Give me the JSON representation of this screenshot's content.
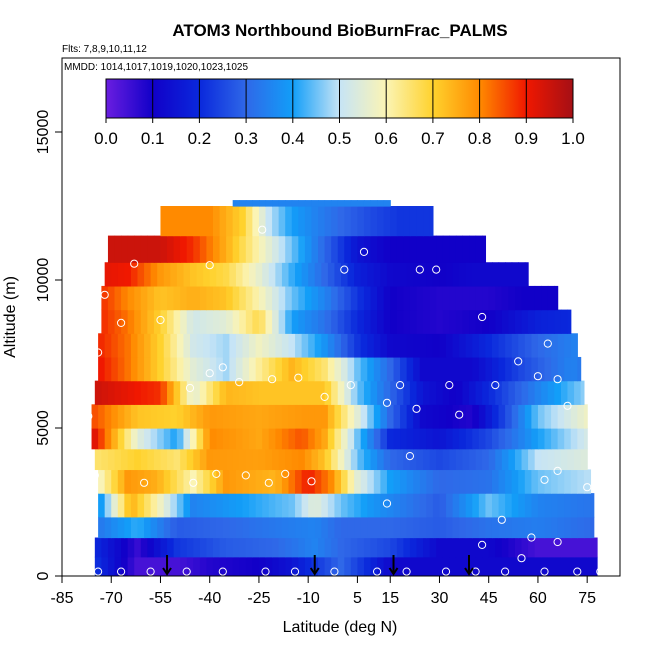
{
  "chart_data": {
    "type": "heatmap",
    "title": "ATOM3 Northbound BioBurnFrac_PALMS",
    "flights_note": "Flts: 7,8,9,10,11,12",
    "dates_note": "MMDD: 1014,1017,1019,1020,1023,1025",
    "xlabel": "Latitude (deg N)",
    "ylabel": "Altitude (m)",
    "xlim": [
      -85,
      85
    ],
    "ylim": [
      0,
      17500
    ],
    "x_ticks": [
      -85,
      -70,
      -55,
      -40,
      -25,
      -10,
      5,
      15,
      30,
      45,
      60,
      75
    ],
    "y_ticks": [
      0,
      5000,
      10000,
      15000
    ],
    "colorbar": {
      "ticks": [
        "0.0",
        "0.1",
        "0.2",
        "0.3",
        "0.4",
        "0.5",
        "0.6",
        "0.7",
        "0.8",
        "0.9",
        "1.0"
      ],
      "range": [
        0,
        1
      ],
      "colors": [
        "#6a1ee0",
        "#1100c8",
        "#0a28dc",
        "#2f68e8",
        "#129ef8",
        "#c6e4f6",
        "#fbf4b4",
        "#ffd22d",
        "#ff8a00",
        "#f01800",
        "#a50f15"
      ]
    },
    "cloud_layers": [
      {
        "y": [
          0,
          650
        ],
        "pts": [
          [
            -75,
            0.22
          ],
          [
            -62,
            0.04
          ],
          [
            -50,
            0.04
          ],
          [
            -40,
            0.08
          ],
          [
            -25,
            0.1
          ],
          [
            -15,
            0.15
          ],
          [
            -8,
            0.22
          ],
          [
            0,
            0.3
          ],
          [
            15,
            0.12
          ],
          [
            30,
            0.12
          ],
          [
            45,
            0.12
          ],
          [
            60,
            0.12
          ],
          [
            78,
            0.12
          ]
        ]
      },
      {
        "y": [
          650,
          1300
        ],
        "pts": [
          [
            -75,
            0.2
          ],
          [
            -62,
            0.06
          ],
          [
            -50,
            0.22
          ],
          [
            -35,
            0.28
          ],
          [
            -20,
            0.3
          ],
          [
            -8,
            0.35
          ],
          [
            0,
            0.3
          ],
          [
            15,
            0.25
          ],
          [
            30,
            0.12
          ],
          [
            45,
            0.12
          ],
          [
            60,
            0.04
          ],
          [
            78,
            0.04
          ]
        ]
      },
      {
        "y": [
          1300,
          2000
        ],
        "pts": [
          [
            -75,
            0.32
          ],
          [
            -62,
            0.42
          ],
          [
            -50,
            0.28
          ],
          [
            -35,
            0.3
          ],
          [
            -20,
            0.33
          ],
          [
            -8,
            0.35
          ],
          [
            0,
            0.3
          ],
          [
            15,
            0.3
          ],
          [
            30,
            0.28
          ],
          [
            45,
            0.32
          ],
          [
            60,
            0.34
          ],
          [
            78,
            0.3
          ]
        ]
      },
      {
        "y": [
          2000,
          2800
        ],
        "pts": [
          [
            -75,
            0.32
          ],
          [
            -64,
            0.75
          ],
          [
            -56,
            0.6
          ],
          [
            -45,
            0.35
          ],
          [
            -30,
            0.4
          ],
          [
            -15,
            0.45
          ],
          [
            -8,
            0.55
          ],
          [
            0,
            0.45
          ],
          [
            10,
            0.38
          ],
          [
            30,
            0.28
          ],
          [
            45,
            0.45
          ],
          [
            60,
            0.35
          ],
          [
            78,
            0.32
          ]
        ]
      },
      {
        "y": [
          2800,
          3600
        ],
        "pts": [
          [
            -75,
            0.55
          ],
          [
            -65,
            0.78
          ],
          [
            -56,
            0.75
          ],
          [
            -45,
            0.6
          ],
          [
            -35,
            0.78
          ],
          [
            -20,
            0.74
          ],
          [
            -10,
            0.9
          ],
          [
            -3,
            0.8
          ],
          [
            5,
            0.55
          ],
          [
            15,
            0.4
          ],
          [
            30,
            0.3
          ],
          [
            45,
            0.32
          ],
          [
            60,
            0.45
          ],
          [
            78,
            0.5
          ]
        ]
      },
      {
        "y": [
          3600,
          4300
        ],
        "pts": [
          [
            -75,
            0.65
          ],
          [
            -62,
            0.7
          ],
          [
            -50,
            0.65
          ],
          [
            -40,
            0.78
          ],
          [
            -25,
            0.77
          ],
          [
            -12,
            0.8
          ],
          [
            -5,
            0.72
          ],
          [
            5,
            0.45
          ],
          [
            15,
            0.3
          ],
          [
            30,
            0.25
          ],
          [
            45,
            0.3
          ],
          [
            60,
            0.5
          ],
          [
            78,
            0.55
          ]
        ]
      },
      {
        "y": [
          4300,
          5000
        ],
        "pts": [
          [
            -75,
            0.92
          ],
          [
            -62,
            0.55
          ],
          [
            -50,
            0.4
          ],
          [
            -40,
            0.8
          ],
          [
            -25,
            0.76
          ],
          [
            -12,
            0.85
          ],
          [
            -5,
            0.76
          ],
          [
            5,
            0.45
          ],
          [
            15,
            0.2
          ],
          [
            30,
            0.15
          ],
          [
            45,
            0.25
          ],
          [
            60,
            0.4
          ],
          [
            78,
            0.55
          ]
        ]
      },
      {
        "y": [
          5000,
          5800
        ],
        "pts": [
          [
            -75,
            0.85
          ],
          [
            -62,
            0.72
          ],
          [
            -50,
            0.7
          ],
          [
            -40,
            0.78
          ],
          [
            -25,
            0.76
          ],
          [
            -12,
            0.78
          ],
          [
            -5,
            0.78
          ],
          [
            5,
            0.55
          ],
          [
            15,
            0.3
          ],
          [
            25,
            0.12
          ],
          [
            40,
            0.08
          ],
          [
            50,
            0.25
          ],
          [
            60,
            0.45
          ],
          [
            78,
            0.6
          ]
        ]
      },
      {
        "y": [
          5800,
          6600
        ],
        "pts": [
          [
            -75,
            0.95
          ],
          [
            -62,
            0.9
          ],
          [
            -55,
            0.88
          ],
          [
            -45,
            0.55
          ],
          [
            -35,
            0.74
          ],
          [
            -25,
            0.72
          ],
          [
            -15,
            0.72
          ],
          [
            -5,
            0.72
          ],
          [
            5,
            0.45
          ],
          [
            15,
            0.3
          ],
          [
            25,
            0.15
          ],
          [
            35,
            0.1
          ],
          [
            45,
            0.2
          ],
          [
            60,
            0.35
          ],
          [
            78,
            0.5
          ]
        ]
      },
      {
        "y": [
          6600,
          7400
        ],
        "pts": [
          [
            -75,
            0.92
          ],
          [
            -65,
            0.82
          ],
          [
            -55,
            0.7
          ],
          [
            -45,
            0.55
          ],
          [
            -35,
            0.48
          ],
          [
            -25,
            0.62
          ],
          [
            -15,
            0.74
          ],
          [
            -5,
            0.65
          ],
          [
            5,
            0.45
          ],
          [
            15,
            0.3
          ],
          [
            25,
            0.12
          ],
          [
            40,
            0.12
          ],
          [
            55,
            0.25
          ],
          [
            70,
            0.35
          ],
          [
            78,
            0.3
          ]
        ]
      },
      {
        "y": [
          7400,
          8200
        ],
        "pts": [
          [
            -75,
            0.9
          ],
          [
            -65,
            0.82
          ],
          [
            -55,
            0.7
          ],
          [
            -45,
            0.52
          ],
          [
            -35,
            0.48
          ],
          [
            -25,
            0.58
          ],
          [
            -15,
            0.5
          ],
          [
            -5,
            0.38
          ],
          [
            5,
            0.22
          ],
          [
            15,
            0.12
          ],
          [
            30,
            0.1
          ],
          [
            45,
            0.2
          ],
          [
            60,
            0.3
          ],
          [
            72,
            0.35
          ]
        ]
      },
      {
        "y": [
          8200,
          9000
        ],
        "pts": [
          [
            -75,
            0.9
          ],
          [
            -65,
            0.82
          ],
          [
            -55,
            0.7
          ],
          [
            -45,
            0.52
          ],
          [
            -35,
            0.55
          ],
          [
            -25,
            0.68
          ],
          [
            -15,
            0.4
          ],
          [
            -5,
            0.32
          ],
          [
            5,
            0.2
          ],
          [
            15,
            0.1
          ],
          [
            30,
            0.08
          ],
          [
            45,
            0.1
          ],
          [
            60,
            0.18
          ],
          [
            70,
            0.2
          ]
        ]
      },
      {
        "y": [
          9000,
          9800
        ],
        "pts": [
          [
            -75,
            0.9
          ],
          [
            -65,
            0.8
          ],
          [
            -55,
            0.72
          ],
          [
            -45,
            0.75
          ],
          [
            -35,
            0.72
          ],
          [
            -25,
            0.6
          ],
          [
            -15,
            0.45
          ],
          [
            -5,
            0.35
          ],
          [
            5,
            0.22
          ],
          [
            15,
            0.1
          ],
          [
            30,
            0.08
          ],
          [
            45,
            0.08
          ],
          [
            55,
            0.1
          ]
        ]
      },
      {
        "y": [
          9800,
          10600
        ],
        "pts": [
          [
            -75,
            0.92
          ],
          [
            -65,
            0.9
          ],
          [
            -55,
            0.78
          ],
          [
            -45,
            0.72
          ],
          [
            -35,
            0.68
          ],
          [
            -25,
            0.56
          ],
          [
            -15,
            0.42
          ],
          [
            -5,
            0.3
          ],
          [
            5,
            0.18
          ],
          [
            15,
            0.12
          ],
          [
            30,
            0.1
          ],
          [
            40,
            0.12
          ]
        ]
      },
      {
        "y": [
          10600,
          11500
        ],
        "pts": [
          [
            -55,
            0.95
          ],
          [
            -45,
            0.88
          ],
          [
            -35,
            0.75
          ],
          [
            -25,
            0.6
          ],
          [
            -15,
            0.45
          ],
          [
            -5,
            0.3
          ],
          [
            5,
            0.15
          ],
          [
            15,
            0.1
          ],
          [
            28,
            0.1
          ]
        ]
      },
      {
        "y": [
          11500,
          12500
        ],
        "pts": [
          [
            -40,
            0.8
          ],
          [
            -30,
            0.7
          ],
          [
            -22,
            0.5
          ],
          [
            -15,
            0.4
          ],
          [
            -8,
            0.35
          ],
          [
            0,
            0.3
          ],
          [
            10,
            0.25
          ],
          [
            18,
            0.22
          ]
        ]
      },
      {
        "y": [
          12500,
          12700
        ],
        "pts": [
          [
            -10,
            0.35
          ],
          [
            -8,
            0.35
          ]
        ]
      }
    ],
    "coverage": [
      [
        0,
        -75,
        78
      ],
      [
        650,
        -75,
        78
      ],
      [
        1300,
        -74,
        77
      ],
      [
        2000,
        -74,
        77
      ],
      [
        2800,
        -74,
        76
      ],
      [
        3600,
        -75,
        75
      ],
      [
        4300,
        -76,
        75
      ],
      [
        5000,
        -76,
        75
      ],
      [
        5800,
        -75,
        74
      ],
      [
        6600,
        -74,
        73
      ],
      [
        7400,
        -74,
        72
      ],
      [
        8200,
        -73,
        70
      ],
      [
        9000,
        -73,
        66
      ],
      [
        9800,
        -72,
        57
      ],
      [
        10600,
        -71,
        44
      ],
      [
        11500,
        -55,
        28
      ],
      [
        12500,
        -33,
        15
      ],
      [
        12700,
        -10,
        -8
      ]
    ],
    "samples": [
      [
        -74,
        150
      ],
      [
        -67,
        150
      ],
      [
        -58,
        150
      ],
      [
        -47,
        150
      ],
      [
        -36,
        150
      ],
      [
        -23,
        150
      ],
      [
        -14,
        150
      ],
      [
        -2,
        150
      ],
      [
        11,
        150
      ],
      [
        20,
        150
      ],
      [
        32,
        150
      ],
      [
        41,
        150
      ],
      [
        50,
        150
      ],
      [
        62,
        150
      ],
      [
        72,
        150
      ],
      [
        79,
        150
      ],
      [
        -60,
        3150
      ],
      [
        -75,
        3400
      ],
      [
        -45,
        3150
      ],
      [
        -38,
        3450
      ],
      [
        -29,
        3400
      ],
      [
        -22,
        3150
      ],
      [
        -17,
        3450
      ],
      [
        -9,
        3200
      ],
      [
        14,
        2450
      ],
      [
        21,
        4050
      ],
      [
        66,
        1150
      ],
      [
        58,
        1300
      ],
      [
        55,
        600
      ],
      [
        49,
        1900
      ],
      [
        43,
        1050
      ],
      [
        75,
        3000
      ],
      [
        -77,
        5400
      ],
      [
        -46,
        6350
      ],
      [
        -40,
        6850
      ],
      [
        -31,
        6550
      ],
      [
        -21,
        6650
      ],
      [
        -13,
        6700
      ],
      [
        -5,
        6050
      ],
      [
        3,
        6450
      ],
      [
        14,
        5850
      ],
      [
        18,
        6450
      ],
      [
        23,
        5650
      ],
      [
        36,
        5450
      ],
      [
        33,
        6450
      ],
      [
        47,
        6450
      ],
      [
        66,
        6650
      ],
      [
        69,
        5750
      ],
      [
        75,
        6950
      ],
      [
        -74,
        7550
      ],
      [
        -67,
        8550
      ],
      [
        -55,
        8650
      ],
      [
        -36,
        7050
      ],
      [
        -40,
        10500
      ],
      [
        -63,
        10550
      ],
      [
        -24,
        11700
      ],
      [
        7,
        10950
      ],
      [
        1,
        10350
      ],
      [
        24,
        10350
      ],
      [
        29,
        10350
      ],
      [
        43,
        8750
      ],
      [
        63,
        7850
      ],
      [
        54,
        7250
      ],
      [
        60,
        6750
      ],
      [
        75,
        6750
      ],
      [
        66,
        3550
      ],
      [
        62,
        3250
      ],
      [
        -72,
        9500
      ]
    ],
    "arrows": [
      -53,
      -8,
      16,
      39
    ]
  }
}
